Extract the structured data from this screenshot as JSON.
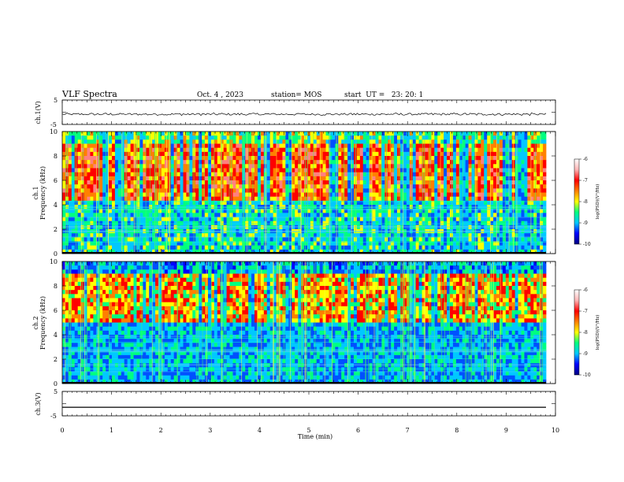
{
  "header": {
    "title": "VLF Spectra",
    "date": "Oct. 4 , 2023",
    "station": "station= MOS",
    "start": "start  UT =   23: 20: 1"
  },
  "chart_data": [
    {
      "type": "line",
      "panel": "ch1-waveform",
      "ylabel": "ch.1(V)",
      "ylim": [
        -5,
        5
      ],
      "yticks": [
        "5",
        "-5"
      ],
      "xlim": [
        0,
        10
      ],
      "series": [
        {
          "values": [
            -0.9,
            -0.7,
            -1.0,
            -0.6,
            -0.8,
            -1.1,
            -0.7,
            -0.9,
            -0.8,
            -1.0,
            -0.6,
            -0.9
          ]
        }
      ]
    },
    {
      "type": "heatmap",
      "panel": "ch1-spectrogram",
      "ylabel": "ch.1\nFrequency (kHz)",
      "ylim": [
        0,
        10
      ],
      "yticks": [
        "0",
        "2",
        "4",
        "6",
        "8",
        "10"
      ],
      "xlim": [
        0,
        10
      ]
    },
    {
      "type": "heatmap",
      "panel": "ch2-spectrogram",
      "ylabel": "ch.2\nFrequency (kHz)",
      "ylim": [
        0,
        10
      ],
      "yticks": [
        "0",
        "2",
        "4",
        "6",
        "8",
        "10"
      ],
      "xlim": [
        0,
        10
      ]
    },
    {
      "type": "line",
      "panel": "ch3-waveform",
      "ylabel": "ch.3(V)",
      "ylim": [
        -5,
        5
      ],
      "yticks": [
        "5",
        "-5"
      ],
      "xlim": [
        0,
        10
      ],
      "series": [
        {
          "values": [
            -1.5,
            -1.5
          ]
        }
      ]
    }
  ],
  "x_axis": {
    "label": "Time (min)",
    "ticks": [
      "0",
      "1",
      "2",
      "3",
      "4",
      "5",
      "6",
      "7",
      "8",
      "9",
      "10"
    ]
  },
  "colorbar": {
    "label": "log(PSD)(V²/Hz)",
    "ticks": [
      "-6",
      "-7",
      "-8",
      "-9",
      "-10"
    ],
    "range": [
      -10,
      -6
    ],
    "colors": [
      "#000080",
      "#0000ff",
      "#00c8ff",
      "#00ff80",
      "#ffff00",
      "#ff8000",
      "#ff0000",
      "#ffb4b4",
      "#ffffff"
    ]
  }
}
